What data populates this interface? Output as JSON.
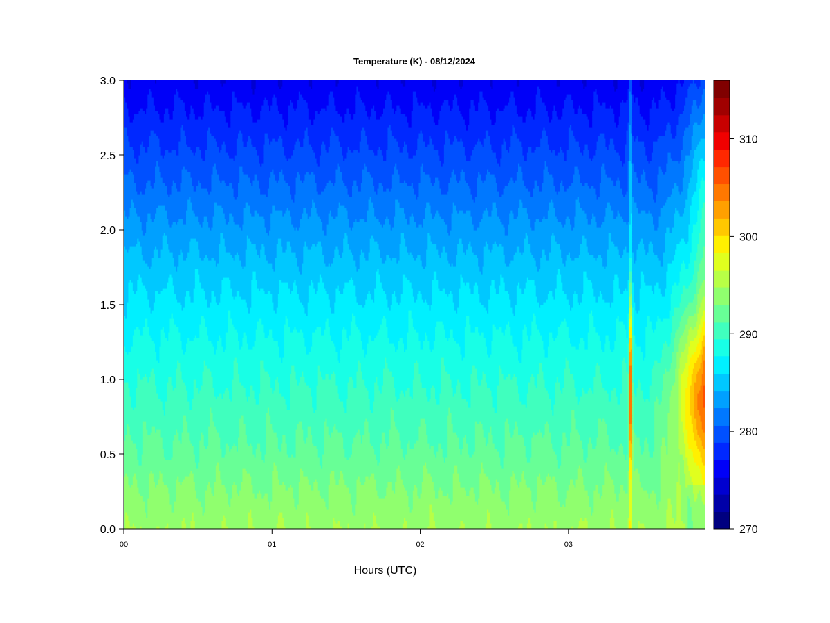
{
  "chart_data": {
    "type": "heatmap",
    "title": "Temperature (K) - 08/12/2024",
    "xlabel": "Hours (UTC)",
    "ylabel": "",
    "x_ticks": [
      "00",
      "01",
      "02",
      "03"
    ],
    "x_tick_values": [
      0,
      1,
      2,
      3
    ],
    "xlim": [
      0,
      3.92
    ],
    "y_ticks": [
      "0.0",
      "0.5",
      "1.0",
      "1.5",
      "2.0",
      "2.5",
      "3.0"
    ],
    "ylim": [
      0,
      3.0
    ],
    "colorbar": {
      "min": 270,
      "max": 316,
      "step": 2,
      "ticks": [
        "270",
        "280",
        "290",
        "300",
        "310"
      ],
      "colors": [
        "#000080",
        "#0000A8",
        "#0000D0",
        "#0000F8",
        "#0028FF",
        "#0050FF",
        "#0078FF",
        "#00A0FF",
        "#00C8FF",
        "#00F0FF",
        "#18FFE6",
        "#40FFBE",
        "#68FF96",
        "#90FF6E",
        "#B8FF46",
        "#E0FF1E",
        "#FFF000",
        "#FFC800",
        "#FFA000",
        "#FF7800",
        "#FF5000",
        "#FF2800",
        "#F00000",
        "#C80000",
        "#A00000",
        "#800000"
      ]
    },
    "profile": {
      "height": [
        0.0,
        0.25,
        0.5,
        0.75,
        1.0,
        1.25,
        1.5,
        1.75,
        2.0,
        2.25,
        2.5,
        2.75,
        3.0
      ],
      "temperature": [
        297.5,
        296.2,
        294.5,
        293.2,
        291.8,
        290.3,
        288.6,
        286.8,
        284.8,
        282.6,
        280.5,
        278.5,
        276.5
      ]
    },
    "annotations": [
      {
        "x": 3.42,
        "note": "narrow warm column from near surface to 3.0"
      },
      {
        "x": 3.9,
        "y": 0.9,
        "temperature_max": 310
      }
    ]
  }
}
